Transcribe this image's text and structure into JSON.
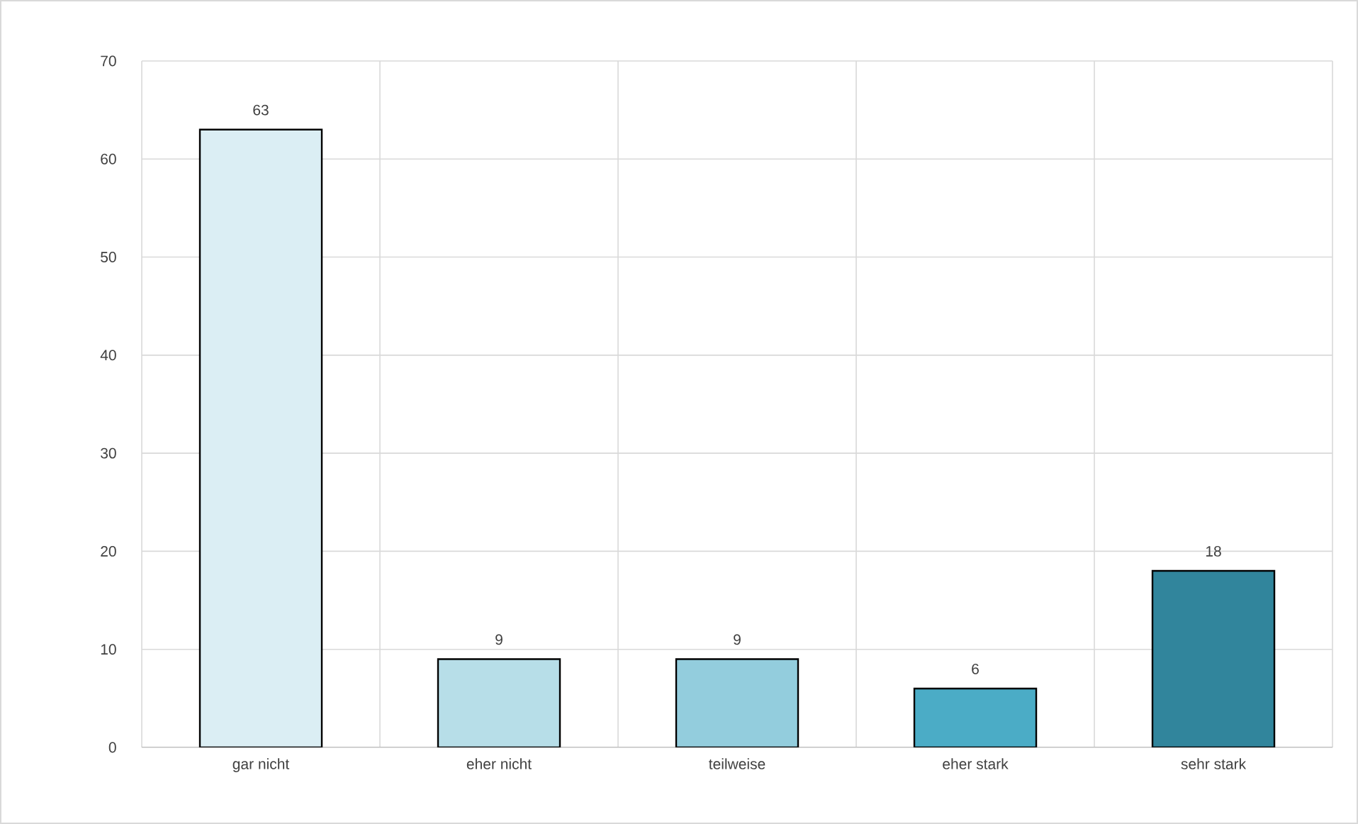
{
  "chart_data": {
    "type": "bar",
    "categories": [
      "gar nicht",
      "eher nicht",
      "teilweise",
      "eher stark",
      "sehr stark"
    ],
    "values": [
      63,
      9,
      9,
      6,
      18
    ],
    "colors": [
      "#dbeef4",
      "#b7dee8",
      "#93cddd",
      "#4bacc6",
      "#31859c"
    ],
    "ylim": [
      0,
      70
    ],
    "yticks": [
      0,
      10,
      20,
      30,
      40,
      50,
      60,
      70
    ],
    "grid": true,
    "data_labels": true
  }
}
